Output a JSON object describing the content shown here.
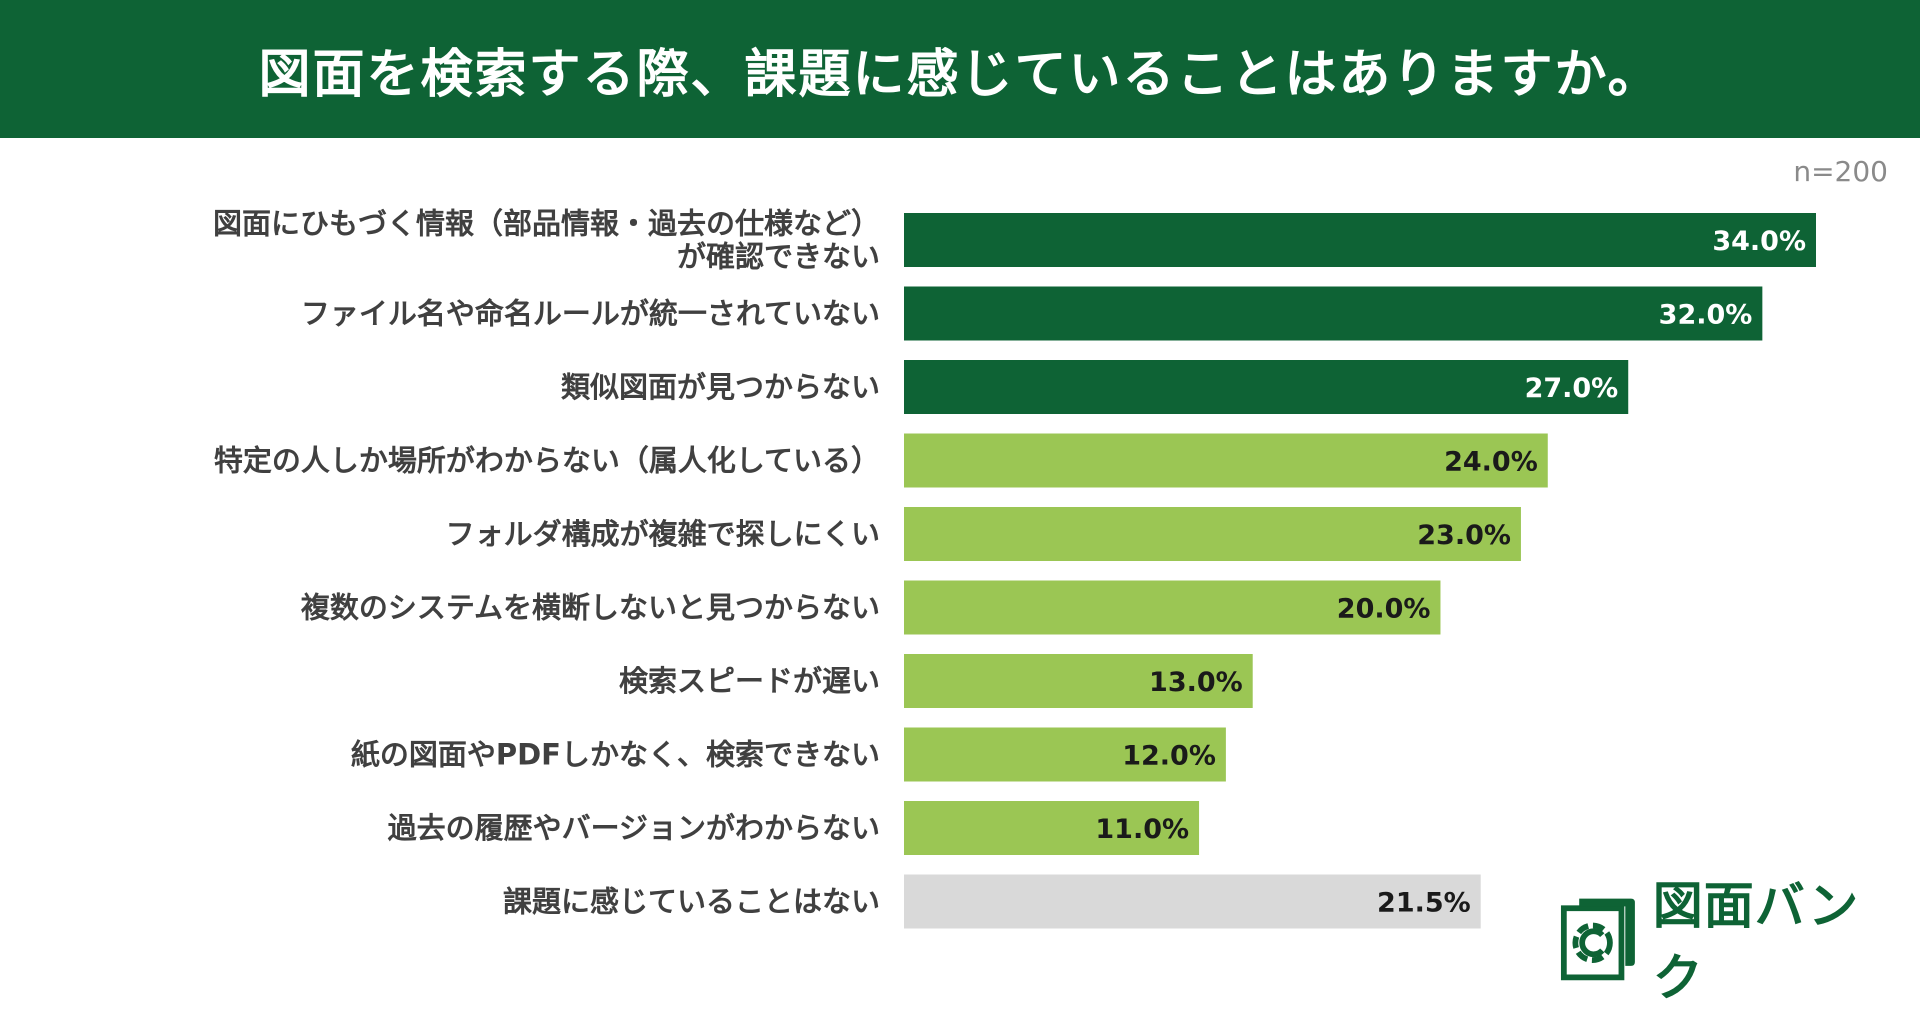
{
  "title": "図面を検索する際、課題に感じていることはありますか。",
  "sample_size": "n=200",
  "logo": {
    "text": "図面バンク",
    "icon": "gear-c-icon"
  },
  "colors": {
    "header": "#0e6335",
    "dark": "#0e6335",
    "light": "#9bc654",
    "gray": "#d9d9d9",
    "label": "#404040"
  },
  "chart_data": {
    "type": "bar",
    "orientation": "horizontal",
    "title": "図面を検索する際、課題に感じていることはありますか。",
    "xlabel": "",
    "ylabel": "",
    "xlim": [
      0,
      35
    ],
    "grid": false,
    "value_suffix": "%",
    "categories": [
      [
        "図面にひもづく情報（部品情報・過去の仕様など）",
        "が確認できない"
      ],
      [
        "ファイル名や命名ルールが統一されていない"
      ],
      [
        "類似図面が見つからない"
      ],
      [
        "特定の人しか場所がわからない（属人化している）"
      ],
      [
        "フォルダ構成が複雑で探しにくい"
      ],
      [
        "複数のシステムを横断しないと見つからない"
      ],
      [
        "検索スピードが遅い"
      ],
      [
        "紙の図面やPDFしかなく、検索できない"
      ],
      [
        "過去の履歴やバージョンがわからない"
      ],
      [
        "課題に感じていることはない"
      ]
    ],
    "values": [
      34.0,
      32.0,
      27.0,
      24.0,
      23.0,
      20.0,
      13.0,
      12.0,
      11.0,
      21.5
    ],
    "value_labels": [
      "34.0%",
      "32.0%",
      "27.0%",
      "24.0%",
      "23.0%",
      "20.0%",
      "13.0%",
      "12.0%",
      "11.0%",
      "21.5%"
    ],
    "color_groups": [
      "dark",
      "dark",
      "dark",
      "light",
      "light",
      "light",
      "light",
      "light",
      "light",
      "gray"
    ]
  }
}
